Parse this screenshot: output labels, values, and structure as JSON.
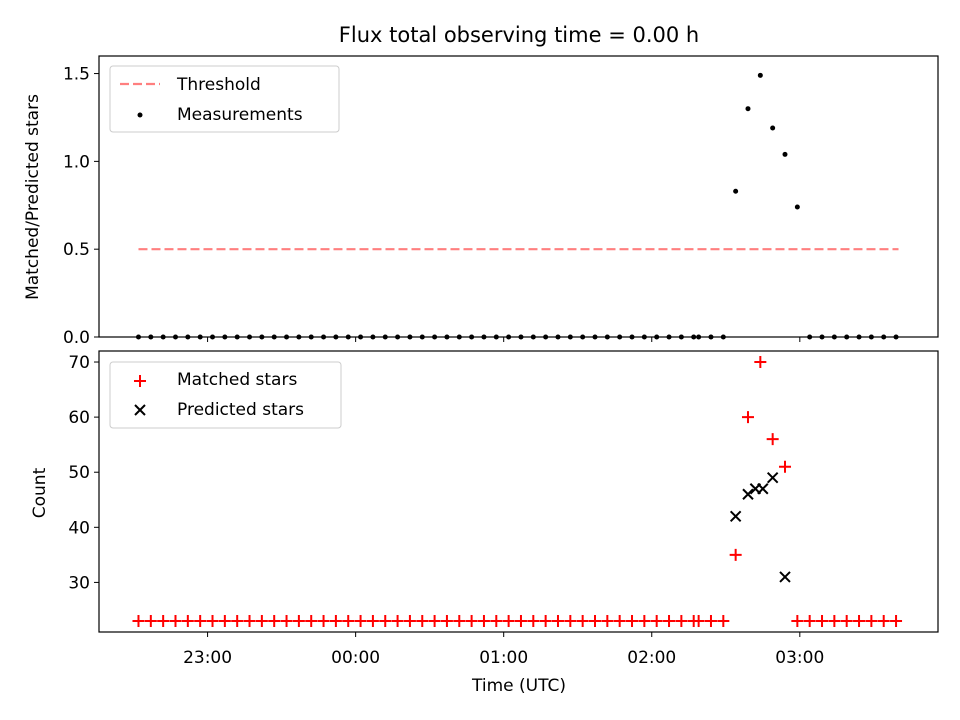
{
  "chart_data": [
    {
      "type": "scatter",
      "title": "Flux total observing time = 0.00 h",
      "xlabel": "",
      "ylabel": "Matched/Predicted stars",
      "xlim": [
        "22:16",
        "03:56"
      ],
      "ylim": [
        0,
        1.6
      ],
      "yticks": [
        0.0,
        0.5,
        1.0,
        1.5
      ],
      "ytick_labels": [
        "0.0",
        "0.5",
        "1.0",
        "1.5"
      ],
      "legend_position": "upper-left",
      "series": [
        {
          "name": "Threshold",
          "style": "dashed-line",
          "color": "#ff7f7f",
          "x": [
            "22:32",
            "03:40"
          ],
          "y": [
            0.5,
            0.5
          ]
        },
        {
          "name": "Measurements",
          "style": "dot",
          "color": "#000000",
          "x": [
            "22:32",
            "22:37",
            "22:42",
            "22:47",
            "22:52",
            "22:57",
            "23:02",
            "23:07",
            "23:12",
            "23:17",
            "23:22",
            "23:27",
            "23:32",
            "23:37",
            "23:42",
            "23:47",
            "23:52",
            "23:57",
            "00:02",
            "00:07",
            "00:12",
            "00:17",
            "00:22",
            "00:27",
            "00:32",
            "00:37",
            "00:42",
            "00:47",
            "00:52",
            "00:57",
            "01:02",
            "01:07",
            "01:12",
            "01:17",
            "01:22",
            "01:27",
            "01:32",
            "01:37",
            "01:42",
            "01:47",
            "01:52",
            "01:57",
            "02:02",
            "02:07",
            "02:12",
            "02:17",
            "02:19",
            "02:24",
            "02:29",
            "02:34",
            "02:39",
            "02:44",
            "02:49",
            "02:54",
            "02:59",
            "03:04",
            "03:09",
            "03:14",
            "03:19",
            "03:24",
            "03:29",
            "03:34",
            "03:39"
          ],
          "y": [
            0,
            0,
            0,
            0,
            0,
            0,
            0,
            0,
            0,
            0,
            0,
            0,
            0,
            0,
            0,
            0,
            0,
            0,
            0,
            0,
            0,
            0,
            0,
            0,
            0,
            0,
            0,
            0,
            0,
            0,
            0,
            0,
            0,
            0,
            0,
            0,
            0,
            0,
            0,
            0,
            0,
            0,
            0,
            0,
            0,
            0,
            0,
            0,
            0,
            0.83,
            1.3,
            1.49,
            1.19,
            1.04,
            0.74,
            0,
            0,
            0,
            0,
            0,
            0,
            0,
            0
          ]
        }
      ]
    },
    {
      "type": "scatter",
      "title": "",
      "xlabel": "Time (UTC)",
      "ylabel": "Count",
      "xlim": [
        "22:16",
        "03:56"
      ],
      "ylim": [
        21,
        72
      ],
      "yticks": [
        30,
        40,
        50,
        60,
        70
      ],
      "ytick_labels": [
        "30",
        "40",
        "50",
        "60",
        "70"
      ],
      "xticks": [
        "23:00",
        "00:00",
        "01:00",
        "02:00",
        "03:00"
      ],
      "legend_position": "upper-left",
      "series": [
        {
          "name": "Matched stars",
          "style": "plus",
          "color": "#ff0000",
          "x": [
            "22:32",
            "22:37",
            "22:42",
            "22:47",
            "22:52",
            "22:57",
            "23:02",
            "23:07",
            "23:12",
            "23:17",
            "23:22",
            "23:27",
            "23:32",
            "23:37",
            "23:42",
            "23:47",
            "23:52",
            "23:57",
            "00:02",
            "00:07",
            "00:12",
            "00:17",
            "00:22",
            "00:27",
            "00:32",
            "00:37",
            "00:42",
            "00:47",
            "00:52",
            "00:57",
            "01:02",
            "01:07",
            "01:12",
            "01:17",
            "01:22",
            "01:27",
            "01:32",
            "01:37",
            "01:42",
            "01:47",
            "01:52",
            "01:57",
            "02:02",
            "02:07",
            "02:12",
            "02:17",
            "02:19",
            "02:24",
            "02:29",
            "02:34",
            "02:39",
            "02:44",
            "02:49",
            "02:54",
            "02:59",
            "03:04",
            "03:09",
            "03:14",
            "03:19",
            "03:24",
            "03:29",
            "03:34",
            "03:39"
          ],
          "y": [
            23,
            23,
            23,
            23,
            23,
            23,
            23,
            23,
            23,
            23,
            23,
            23,
            23,
            23,
            23,
            23,
            23,
            23,
            23,
            23,
            23,
            23,
            23,
            23,
            23,
            23,
            23,
            23,
            23,
            23,
            23,
            23,
            23,
            23,
            23,
            23,
            23,
            23,
            23,
            23,
            23,
            23,
            23,
            23,
            23,
            23,
            23,
            23,
            23,
            35,
            60,
            70,
            56,
            51,
            23,
            23,
            23,
            23,
            23,
            23,
            23,
            23,
            23
          ]
        },
        {
          "name": "Predicted stars",
          "style": "x",
          "color": "#000000",
          "x": [
            "02:34",
            "02:39",
            "02:42",
            "02:45",
            "02:49",
            "02:54"
          ],
          "y": [
            42,
            46,
            47,
            47,
            49,
            31
          ]
        }
      ]
    }
  ]
}
